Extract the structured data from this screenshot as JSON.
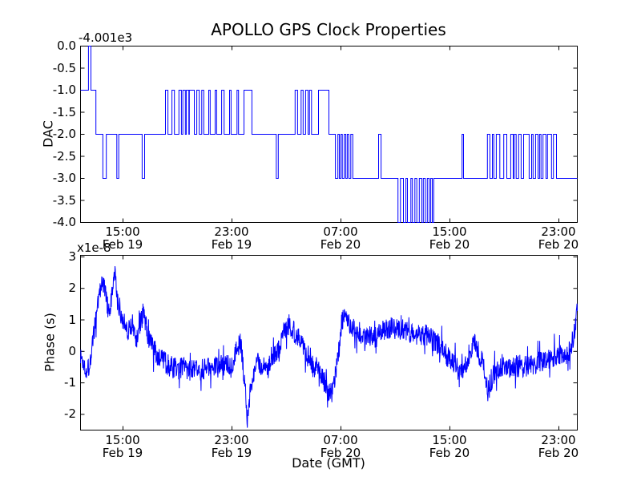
{
  "figure": {
    "background_color": "#ffffff",
    "line_color": "#0000ff",
    "axis_color": "#000000",
    "text_color": "#000000"
  },
  "chart_data": [
    {
      "type": "line",
      "subtype": "step",
      "name": "dac",
      "title": "APOLLO GPS Clock Properties",
      "ylabel": "DAC",
      "y_offset_text": "-4.001e3",
      "ylim": [
        -4.0,
        0.0
      ],
      "yticks": [
        {
          "value": 0.0,
          "label": "0.0"
        },
        {
          "value": -0.5,
          "label": "-0.5"
        },
        {
          "value": -1.0,
          "label": "-1.0"
        },
        {
          "value": -1.5,
          "label": "-1.5"
        },
        {
          "value": -2.0,
          "label": "-2.0"
        },
        {
          "value": -2.5,
          "label": "-2.5"
        },
        {
          "value": -3.0,
          "label": "-3.0"
        },
        {
          "value": -3.5,
          "label": "-3.5"
        },
        {
          "value": -4.0,
          "label": "-4.0"
        }
      ],
      "xticks": [
        {
          "pos": 0.0855,
          "time": "15:00",
          "date": "Feb 19"
        },
        {
          "pos": 0.3048,
          "time": "23:00",
          "date": "Feb 19"
        },
        {
          "pos": 0.5242,
          "time": "07:00",
          "date": "Feb 20"
        },
        {
          "pos": 0.7435,
          "time": "15:00",
          "date": "Feb 20"
        },
        {
          "pos": 0.9629,
          "time": "23:00",
          "date": "Feb 20"
        }
      ],
      "segments": [
        [
          0.0,
          0.016,
          -1
        ],
        [
          0.016,
          0.021,
          0
        ],
        [
          0.021,
          0.031,
          -1
        ],
        [
          0.031,
          0.045,
          -2
        ],
        [
          0.045,
          0.052,
          -3
        ],
        [
          0.052,
          0.073,
          -2
        ],
        [
          0.073,
          0.077,
          -3
        ],
        [
          0.077,
          0.124,
          -2
        ],
        [
          0.124,
          0.129,
          -3
        ],
        [
          0.129,
          0.171,
          -2
        ],
        [
          0.171,
          0.176,
          -1
        ],
        [
          0.176,
          0.184,
          -2
        ],
        [
          0.184,
          0.189,
          -1
        ],
        [
          0.189,
          0.198,
          -2
        ],
        [
          0.198,
          0.203,
          -1
        ],
        [
          0.203,
          0.206,
          -2
        ],
        [
          0.206,
          0.211,
          -1
        ],
        [
          0.211,
          0.213,
          -2
        ],
        [
          0.213,
          0.218,
          -1
        ],
        [
          0.218,
          0.219,
          -2
        ],
        [
          0.219,
          0.229,
          -1
        ],
        [
          0.229,
          0.234,
          -2
        ],
        [
          0.234,
          0.239,
          -1
        ],
        [
          0.239,
          0.244,
          -2
        ],
        [
          0.244,
          0.248,
          -1
        ],
        [
          0.248,
          0.258,
          -2
        ],
        [
          0.258,
          0.261,
          -1
        ],
        [
          0.261,
          0.271,
          -2
        ],
        [
          0.271,
          0.274,
          -1
        ],
        [
          0.274,
          0.284,
          -2
        ],
        [
          0.284,
          0.289,
          -1
        ],
        [
          0.289,
          0.3,
          -2
        ],
        [
          0.3,
          0.303,
          -1
        ],
        [
          0.303,
          0.315,
          -2
        ],
        [
          0.315,
          0.318,
          -1
        ],
        [
          0.318,
          0.329,
          -2
        ],
        [
          0.329,
          0.345,
          -1
        ],
        [
          0.345,
          0.394,
          -2
        ],
        [
          0.394,
          0.398,
          -3
        ],
        [
          0.398,
          0.432,
          -2
        ],
        [
          0.432,
          0.437,
          -1
        ],
        [
          0.437,
          0.444,
          -2
        ],
        [
          0.444,
          0.448,
          -1
        ],
        [
          0.448,
          0.453,
          -2
        ],
        [
          0.453,
          0.458,
          -1
        ],
        [
          0.458,
          0.461,
          -2
        ],
        [
          0.461,
          0.465,
          -1
        ],
        [
          0.465,
          0.479,
          -2
        ],
        [
          0.479,
          0.5,
          -1
        ],
        [
          0.5,
          0.513,
          -2
        ],
        [
          0.513,
          0.518,
          -3
        ],
        [
          0.518,
          0.521,
          -2
        ],
        [
          0.521,
          0.524,
          -3
        ],
        [
          0.524,
          0.527,
          -2
        ],
        [
          0.527,
          0.531,
          -3
        ],
        [
          0.531,
          0.534,
          -2
        ],
        [
          0.534,
          0.537,
          -3
        ],
        [
          0.537,
          0.54,
          -2
        ],
        [
          0.54,
          0.544,
          -3
        ],
        [
          0.544,
          0.548,
          -2
        ],
        [
          0.548,
          0.6,
          -3
        ],
        [
          0.6,
          0.605,
          -2
        ],
        [
          0.605,
          0.639,
          -3
        ],
        [
          0.639,
          0.644,
          -4
        ],
        [
          0.644,
          0.65,
          -3
        ],
        [
          0.65,
          0.655,
          -4
        ],
        [
          0.655,
          0.658,
          -3
        ],
        [
          0.658,
          0.665,
          -4
        ],
        [
          0.665,
          0.668,
          -3
        ],
        [
          0.668,
          0.673,
          -4
        ],
        [
          0.673,
          0.677,
          -3
        ],
        [
          0.677,
          0.682,
          -4
        ],
        [
          0.682,
          0.687,
          -3
        ],
        [
          0.687,
          0.69,
          -4
        ],
        [
          0.69,
          0.694,
          -3
        ],
        [
          0.694,
          0.698,
          -4
        ],
        [
          0.698,
          0.702,
          -3
        ],
        [
          0.702,
          0.705,
          -4
        ],
        [
          0.705,
          0.708,
          -3
        ],
        [
          0.708,
          0.711,
          -4
        ],
        [
          0.711,
          0.768,
          -3
        ],
        [
          0.768,
          0.771,
          -2
        ],
        [
          0.771,
          0.819,
          -3
        ],
        [
          0.819,
          0.824,
          -2
        ],
        [
          0.824,
          0.829,
          -3
        ],
        [
          0.829,
          0.832,
          -2
        ],
        [
          0.832,
          0.837,
          -3
        ],
        [
          0.837,
          0.844,
          -2
        ],
        [
          0.844,
          0.852,
          -3
        ],
        [
          0.852,
          0.858,
          -2
        ],
        [
          0.858,
          0.866,
          -3
        ],
        [
          0.866,
          0.871,
          -2
        ],
        [
          0.871,
          0.873,
          -3
        ],
        [
          0.873,
          0.877,
          -2
        ],
        [
          0.877,
          0.882,
          -3
        ],
        [
          0.882,
          0.887,
          -2
        ],
        [
          0.887,
          0.892,
          -3
        ],
        [
          0.892,
          0.903,
          -2
        ],
        [
          0.903,
          0.908,
          -3
        ],
        [
          0.908,
          0.911,
          -2
        ],
        [
          0.911,
          0.916,
          -3
        ],
        [
          0.916,
          0.921,
          -2
        ],
        [
          0.921,
          0.924,
          -3
        ],
        [
          0.924,
          0.927,
          -2
        ],
        [
          0.927,
          0.931,
          -3
        ],
        [
          0.931,
          0.937,
          -2
        ],
        [
          0.937,
          0.94,
          -3
        ],
        [
          0.94,
          0.948,
          -2
        ],
        [
          0.948,
          0.952,
          -3
        ],
        [
          0.952,
          0.958,
          -2
        ],
        [
          0.958,
          1.0,
          -3
        ]
      ]
    },
    {
      "type": "line",
      "subtype": "noisy",
      "name": "phase",
      "ylabel": "Phase (s)",
      "y_scale_text": "x1e-8",
      "xlabel": "Date (GMT)",
      "ylim": [
        -2.5,
        3.05
      ],
      "yticks": [
        {
          "value": 3,
          "label": "3"
        },
        {
          "value": 2,
          "label": "2"
        },
        {
          "value": 1,
          "label": "1"
        },
        {
          "value": 0,
          "label": "0"
        },
        {
          "value": -1,
          "label": "-1"
        },
        {
          "value": -2,
          "label": "-2"
        }
      ],
      "xticks": [
        {
          "pos": 0.0855,
          "time": "15:00",
          "date": "Feb 19"
        },
        {
          "pos": 0.3048,
          "time": "23:00",
          "date": "Feb 19"
        },
        {
          "pos": 0.5242,
          "time": "07:00",
          "date": "Feb 20"
        },
        {
          "pos": 0.7435,
          "time": "15:00",
          "date": "Feb 20"
        },
        {
          "pos": 0.9629,
          "time": "23:00",
          "date": "Feb 20"
        }
      ],
      "trend_anchors": [
        [
          0.0,
          -0.15
        ],
        [
          0.008,
          -0.45
        ],
        [
          0.016,
          -0.55
        ],
        [
          0.025,
          0.3
        ],
        [
          0.035,
          1.6
        ],
        [
          0.045,
          2.25
        ],
        [
          0.052,
          1.7
        ],
        [
          0.058,
          1.05
        ],
        [
          0.064,
          1.9
        ],
        [
          0.069,
          2.45
        ],
        [
          0.075,
          1.55
        ],
        [
          0.085,
          1.05
        ],
        [
          0.095,
          0.7
        ],
        [
          0.105,
          0.85
        ],
        [
          0.113,
          0.3
        ],
        [
          0.12,
          0.9
        ],
        [
          0.127,
          1.25
        ],
        [
          0.135,
          0.6
        ],
        [
          0.145,
          0.1
        ],
        [
          0.155,
          -0.15
        ],
        [
          0.17,
          -0.35
        ],
        [
          0.19,
          -0.55
        ],
        [
          0.21,
          -0.5
        ],
        [
          0.23,
          -0.65
        ],
        [
          0.25,
          -0.55
        ],
        [
          0.27,
          -0.5
        ],
        [
          0.29,
          -0.45
        ],
        [
          0.305,
          -0.35
        ],
        [
          0.315,
          0.1
        ],
        [
          0.322,
          0.3
        ],
        [
          0.33,
          -0.9
        ],
        [
          0.336,
          -2.25
        ],
        [
          0.342,
          -1.1
        ],
        [
          0.35,
          -0.55
        ],
        [
          0.36,
          -0.35
        ],
        [
          0.372,
          -0.6
        ],
        [
          0.385,
          -0.4
        ],
        [
          0.398,
          0.1
        ],
        [
          0.408,
          0.6
        ],
        [
          0.42,
          0.85
        ],
        [
          0.432,
          0.6
        ],
        [
          0.445,
          0.35
        ],
        [
          0.458,
          -0.1
        ],
        [
          0.47,
          -0.45
        ],
        [
          0.482,
          -0.6
        ],
        [
          0.492,
          -1.0
        ],
        [
          0.502,
          -1.45
        ],
        [
          0.51,
          -1.1
        ],
        [
          0.518,
          -0.3
        ],
        [
          0.524,
          0.7
        ],
        [
          0.53,
          1.2
        ],
        [
          0.54,
          0.85
        ],
        [
          0.554,
          0.7
        ],
        [
          0.568,
          0.5
        ],
        [
          0.58,
          0.45
        ],
        [
          0.592,
          0.4
        ],
        [
          0.605,
          0.6
        ],
        [
          0.618,
          0.75
        ],
        [
          0.63,
          0.75
        ],
        [
          0.642,
          0.7
        ],
        [
          0.655,
          0.65
        ],
        [
          0.668,
          0.55
        ],
        [
          0.68,
          0.5
        ],
        [
          0.692,
          0.55
        ],
        [
          0.705,
          0.4
        ],
        [
          0.715,
          0.3
        ],
        [
          0.728,
          0.05
        ],
        [
          0.742,
          -0.25
        ],
        [
          0.755,
          -0.45
        ],
        [
          0.768,
          -0.55
        ],
        [
          0.778,
          -0.3
        ],
        [
          0.788,
          0.15
        ],
        [
          0.795,
          0.2
        ],
        [
          0.805,
          -0.2
        ],
        [
          0.813,
          -0.6
        ],
        [
          0.82,
          -1.3
        ],
        [
          0.827,
          -0.9
        ],
        [
          0.836,
          -0.6
        ],
        [
          0.848,
          -0.5
        ],
        [
          0.86,
          -0.55
        ],
        [
          0.872,
          -0.5
        ],
        [
          0.884,
          -0.45
        ],
        [
          0.896,
          -0.5
        ],
        [
          0.908,
          -0.4
        ],
        [
          0.92,
          -0.35
        ],
        [
          0.932,
          -0.3
        ],
        [
          0.944,
          -0.2
        ],
        [
          0.956,
          -0.15
        ],
        [
          0.968,
          -0.1
        ],
        [
          0.978,
          -0.2
        ],
        [
          0.988,
          0.1
        ],
        [
          0.995,
          0.7
        ],
        [
          1.0,
          1.5
        ]
      ],
      "noise": {
        "amplitude": 0.36,
        "spike_probability": 0.05,
        "spike_multiplier": 2.1,
        "points": 1600,
        "seed": 1337
      }
    }
  ]
}
